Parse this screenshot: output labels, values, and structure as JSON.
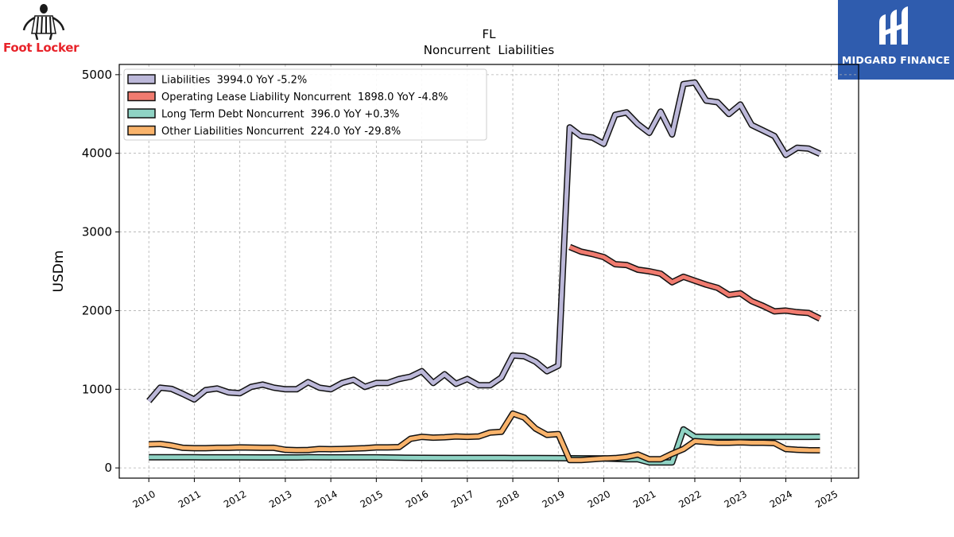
{
  "branding": {
    "company_logo_text": "Foot Locker",
    "publisher_logo_text": "MIDGARD FINANCE",
    "publisher_bg_color": "#2f5cae",
    "company_text_color": "#e8232a"
  },
  "chart_data": {
    "type": "line",
    "title": "FL",
    "subtitle": "Noncurrent  Liabilities",
    "ylabel": "USDm",
    "xlabel": "",
    "ylim": [
      -130,
      5130
    ],
    "xlim": [
      2009.35,
      2025.6
    ],
    "grid": true,
    "legend_position": "upper-left",
    "x_ticks": [
      "2010",
      "2011",
      "2012",
      "2013",
      "2014",
      "2015",
      "2016",
      "2017",
      "2018",
      "2019",
      "2020",
      "2021",
      "2022",
      "2023",
      "2024",
      "2025"
    ],
    "y_ticks": [
      "0",
      "1000",
      "2000",
      "3000",
      "4000",
      "5000"
    ],
    "series": [
      {
        "name": "Liabilities  3994.0 YoY -5.2%",
        "color": "#bcb8d9",
        "points": [
          [
            2010.0,
            850
          ],
          [
            2010.25,
            1020
          ],
          [
            2010.5,
            1005
          ],
          [
            2010.75,
            940
          ],
          [
            2011.0,
            870
          ],
          [
            2011.25,
            990
          ],
          [
            2011.5,
            1010
          ],
          [
            2011.75,
            960
          ],
          [
            2012.0,
            950
          ],
          [
            2012.25,
            1030
          ],
          [
            2012.5,
            1060
          ],
          [
            2012.75,
            1020
          ],
          [
            2013.0,
            1000
          ],
          [
            2013.25,
            1000
          ],
          [
            2013.5,
            1090
          ],
          [
            2013.75,
            1020
          ],
          [
            2014.0,
            1000
          ],
          [
            2014.25,
            1080
          ],
          [
            2014.5,
            1120
          ],
          [
            2014.75,
            1030
          ],
          [
            2015.0,
            1080
          ],
          [
            2015.25,
            1080
          ],
          [
            2015.5,
            1130
          ],
          [
            2015.75,
            1160
          ],
          [
            2016.0,
            1230
          ],
          [
            2016.25,
            1080
          ],
          [
            2016.5,
            1190
          ],
          [
            2016.75,
            1070
          ],
          [
            2017.0,
            1130
          ],
          [
            2017.25,
            1050
          ],
          [
            2017.5,
            1050
          ],
          [
            2017.75,
            1150
          ],
          [
            2018.0,
            1430
          ],
          [
            2018.25,
            1420
          ],
          [
            2018.5,
            1350
          ],
          [
            2018.75,
            1230
          ],
          [
            2019.0,
            1300
          ],
          [
            2019.25,
            4330
          ],
          [
            2019.5,
            4220
          ],
          [
            2019.75,
            4200
          ],
          [
            2020.0,
            4120
          ],
          [
            2020.25,
            4490
          ],
          [
            2020.5,
            4520
          ],
          [
            2020.75,
            4370
          ],
          [
            2021.0,
            4260
          ],
          [
            2021.25,
            4530
          ],
          [
            2021.5,
            4240
          ],
          [
            2021.75,
            4880
          ],
          [
            2022.0,
            4900
          ],
          [
            2022.25,
            4670
          ],
          [
            2022.5,
            4650
          ],
          [
            2022.75,
            4500
          ],
          [
            2023.0,
            4620
          ],
          [
            2023.25,
            4360
          ],
          [
            2023.5,
            4290
          ],
          [
            2023.75,
            4220
          ],
          [
            2024.0,
            3980
          ],
          [
            2024.25,
            4070
          ],
          [
            2024.5,
            4060
          ],
          [
            2024.75,
            3994
          ]
        ]
      },
      {
        "name": "Operating Lease Liability Noncurrent  1898.0 YoY -4.8%",
        "color": "#f07b6f",
        "points": [
          [
            2019.25,
            2810
          ],
          [
            2019.5,
            2750
          ],
          [
            2019.75,
            2720
          ],
          [
            2020.0,
            2680
          ],
          [
            2020.25,
            2590
          ],
          [
            2020.5,
            2580
          ],
          [
            2020.75,
            2520
          ],
          [
            2021.0,
            2500
          ],
          [
            2021.25,
            2470
          ],
          [
            2021.5,
            2360
          ],
          [
            2021.75,
            2430
          ],
          [
            2022.0,
            2380
          ],
          [
            2022.25,
            2330
          ],
          [
            2022.5,
            2290
          ],
          [
            2022.75,
            2200
          ],
          [
            2023.0,
            2220
          ],
          [
            2023.25,
            2120
          ],
          [
            2023.5,
            2060
          ],
          [
            2023.75,
            1990
          ],
          [
            2024.0,
            2000
          ],
          [
            2024.25,
            1980
          ],
          [
            2024.5,
            1970
          ],
          [
            2024.75,
            1898
          ]
        ]
      },
      {
        "name": "Long Term Debt Noncurrent  396.0 YoY +0.3%",
        "color": "#8fd3c4",
        "points": [
          [
            2010.0,
            135
          ],
          [
            2010.5,
            135
          ],
          [
            2011.0,
            135
          ],
          [
            2011.5,
            134
          ],
          [
            2012.0,
            134
          ],
          [
            2012.5,
            133
          ],
          [
            2013.0,
            133
          ],
          [
            2013.25,
            133
          ],
          [
            2013.5,
            135
          ],
          [
            2014.0,
            134
          ],
          [
            2014.5,
            134
          ],
          [
            2015.0,
            134
          ],
          [
            2015.5,
            130
          ],
          [
            2016.0,
            128
          ],
          [
            2016.5,
            127
          ],
          [
            2017.0,
            127
          ],
          [
            2017.5,
            127
          ],
          [
            2018.0,
            126
          ],
          [
            2018.5,
            125
          ],
          [
            2019.0,
            124
          ],
          [
            2019.25,
            123
          ],
          [
            2019.5,
            122
          ],
          [
            2020.0,
            120
          ],
          [
            2020.5,
            110
          ],
          [
            2020.75,
            110
          ],
          [
            2021.0,
            70
          ],
          [
            2021.25,
            70
          ],
          [
            2021.5,
            70
          ],
          [
            2021.75,
            490
          ],
          [
            2022.0,
            395
          ],
          [
            2022.5,
            395
          ],
          [
            2023.0,
            395
          ],
          [
            2023.5,
            395
          ],
          [
            2024.0,
            395
          ],
          [
            2024.5,
            395
          ],
          [
            2024.75,
            396
          ]
        ]
      },
      {
        "name": "Other Liabilities Noncurrent  224.0 YoY -29.8%",
        "color": "#f9b36b",
        "points": [
          [
            2010.0,
            300
          ],
          [
            2010.25,
            305
          ],
          [
            2010.5,
            285
          ],
          [
            2010.75,
            255
          ],
          [
            2011.0,
            250
          ],
          [
            2011.25,
            250
          ],
          [
            2011.5,
            255
          ],
          [
            2011.75,
            255
          ],
          [
            2012.0,
            260
          ],
          [
            2012.25,
            258
          ],
          [
            2012.5,
            255
          ],
          [
            2012.75,
            255
          ],
          [
            2013.0,
            230
          ],
          [
            2013.25,
            225
          ],
          [
            2013.5,
            228
          ],
          [
            2013.75,
            240
          ],
          [
            2014.0,
            238
          ],
          [
            2014.25,
            240
          ],
          [
            2014.5,
            245
          ],
          [
            2014.75,
            250
          ],
          [
            2015.0,
            260
          ],
          [
            2015.25,
            260
          ],
          [
            2015.5,
            265
          ],
          [
            2015.75,
            370
          ],
          [
            2016.0,
            395
          ],
          [
            2016.25,
            385
          ],
          [
            2016.5,
            390
          ],
          [
            2016.75,
            400
          ],
          [
            2017.0,
            395
          ],
          [
            2017.25,
            400
          ],
          [
            2017.5,
            450
          ],
          [
            2017.75,
            460
          ],
          [
            2018.0,
            690
          ],
          [
            2018.25,
            640
          ],
          [
            2018.5,
            500
          ],
          [
            2018.75,
            420
          ],
          [
            2019.0,
            430
          ],
          [
            2019.25,
            100
          ],
          [
            2019.5,
            100
          ],
          [
            2019.75,
            110
          ],
          [
            2020.0,
            120
          ],
          [
            2020.25,
            125
          ],
          [
            2020.5,
            140
          ],
          [
            2020.75,
            170
          ],
          [
            2021.0,
            110
          ],
          [
            2021.25,
            110
          ],
          [
            2021.5,
            180
          ],
          [
            2021.75,
            240
          ],
          [
            2022.0,
            340
          ],
          [
            2022.25,
            330
          ],
          [
            2022.5,
            320
          ],
          [
            2022.75,
            320
          ],
          [
            2023.0,
            325
          ],
          [
            2023.25,
            320
          ],
          [
            2023.5,
            320
          ],
          [
            2023.75,
            315
          ],
          [
            2024.0,
            240
          ],
          [
            2024.25,
            230
          ],
          [
            2024.5,
            225
          ],
          [
            2024.75,
            224
          ]
        ]
      }
    ]
  }
}
